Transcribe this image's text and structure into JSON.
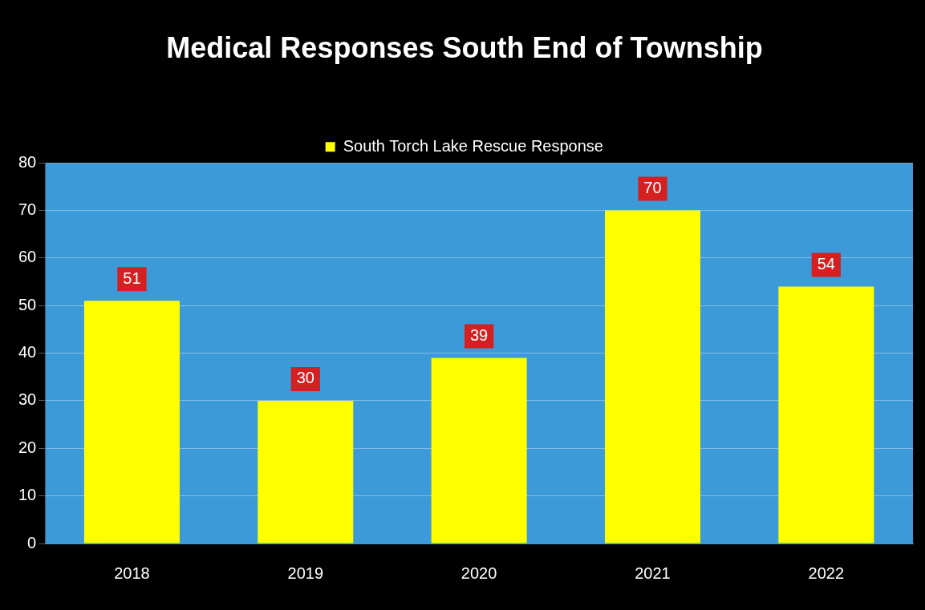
{
  "chart_data": {
    "type": "bar",
    "title": "Medical Responses South End of Township",
    "categories": [
      "2018",
      "2019",
      "2020",
      "2021",
      "2022"
    ],
    "series": [
      {
        "name": "South Torch Lake Rescue Response",
        "color": "#ffff00",
        "values": [
          51,
          30,
          39,
          70,
          54
        ]
      }
    ],
    "ylim": [
      0,
      80
    ],
    "yticks": [
      0,
      10,
      20,
      30,
      40,
      50,
      60,
      70,
      80
    ],
    "grid": "y",
    "legend": "top",
    "data_labels": true
  }
}
